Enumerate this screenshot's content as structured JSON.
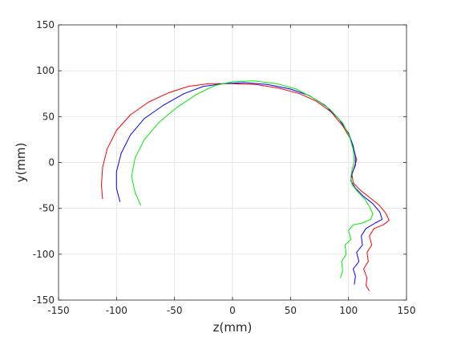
{
  "chart_data": {
    "type": "line",
    "title": "",
    "xlabel": "z(mm)",
    "ylabel": "y(mm)",
    "xlim": [
      -150,
      150
    ],
    "ylim": [
      -150,
      150
    ],
    "xticks": [
      -150,
      -100,
      -50,
      0,
      50,
      100,
      150
    ],
    "yticks": [
      -150,
      -100,
      -50,
      0,
      50,
      100,
      150
    ],
    "grid": true,
    "series": [
      {
        "color": "#ff0000",
        "points": [
          [
            -112,
            -40
          ],
          [
            -113,
            -25
          ],
          [
            -112,
            -5
          ],
          [
            -108,
            15
          ],
          [
            -100,
            35
          ],
          [
            -88,
            52
          ],
          [
            -72,
            66
          ],
          [
            -55,
            76
          ],
          [
            -38,
            83
          ],
          [
            -20,
            86
          ],
          [
            0,
            86
          ],
          [
            20,
            85
          ],
          [
            40,
            81
          ],
          [
            58,
            75
          ],
          [
            72,
            67
          ],
          [
            85,
            55
          ],
          [
            95,
            40
          ],
          [
            102,
            25
          ],
          [
            105,
            12
          ],
          [
            107,
            3
          ],
          [
            105,
            -5
          ],
          [
            103,
            -13
          ],
          [
            104,
            -22
          ],
          [
            110,
            -30
          ],
          [
            118,
            -38
          ],
          [
            126,
            -46
          ],
          [
            132,
            -55
          ],
          [
            135,
            -63
          ],
          [
            130,
            -68
          ],
          [
            122,
            -72
          ],
          [
            118,
            -80
          ],
          [
            120,
            -90
          ],
          [
            116,
            -98
          ],
          [
            117,
            -108
          ],
          [
            113,
            -116
          ],
          [
            116,
            -126
          ],
          [
            115,
            -134
          ],
          [
            118,
            -140
          ]
        ]
      },
      {
        "color": "#0000ff",
        "points": [
          [
            -97,
            -43
          ],
          [
            -100,
            -28
          ],
          [
            -100,
            -10
          ],
          [
            -96,
            10
          ],
          [
            -88,
            30
          ],
          [
            -76,
            48
          ],
          [
            -60,
            62
          ],
          [
            -42,
            75
          ],
          [
            -25,
            83
          ],
          [
            -8,
            86
          ],
          [
            10,
            87
          ],
          [
            30,
            85
          ],
          [
            50,
            80
          ],
          [
            66,
            73
          ],
          [
            80,
            62
          ],
          [
            92,
            47
          ],
          [
            100,
            32
          ],
          [
            104,
            18
          ],
          [
            106,
            6
          ],
          [
            106,
            -3
          ],
          [
            103,
            -12
          ],
          [
            102,
            -20
          ],
          [
            106,
            -28
          ],
          [
            113,
            -37
          ],
          [
            121,
            -45
          ],
          [
            127,
            -54
          ],
          [
            129,
            -62
          ],
          [
            123,
            -66
          ],
          [
            115,
            -72
          ],
          [
            111,
            -80
          ],
          [
            112,
            -90
          ],
          [
            107,
            -98
          ],
          [
            109,
            -108
          ],
          [
            104,
            -116
          ],
          [
            106,
            -124
          ],
          [
            105,
            -133
          ]
        ]
      },
      {
        "color": "#00ee00",
        "points": [
          [
            -79,
            -47
          ],
          [
            -84,
            -33
          ],
          [
            -87,
            -15
          ],
          [
            -84,
            5
          ],
          [
            -76,
            25
          ],
          [
            -64,
            43
          ],
          [
            -48,
            60
          ],
          [
            -30,
            75
          ],
          [
            -15,
            84
          ],
          [
            0,
            88
          ],
          [
            18,
            89
          ],
          [
            38,
            86
          ],
          [
            55,
            80
          ],
          [
            70,
            70
          ],
          [
            84,
            58
          ],
          [
            95,
            43
          ],
          [
            101,
            28
          ],
          [
            104,
            14
          ],
          [
            105,
            2
          ],
          [
            103,
            -8
          ],
          [
            102,
            -16
          ],
          [
            103,
            -24
          ],
          [
            108,
            -32
          ],
          [
            114,
            -40
          ],
          [
            118,
            -48
          ],
          [
            121,
            -56
          ],
          [
            119,
            -62
          ],
          [
            112,
            -66
          ],
          [
            104,
            -68
          ],
          [
            100,
            -74
          ],
          [
            102,
            -84
          ],
          [
            97,
            -90
          ],
          [
            98,
            -100
          ],
          [
            94,
            -108
          ],
          [
            95,
            -118
          ],
          [
            93,
            -126
          ]
        ]
      }
    ]
  }
}
